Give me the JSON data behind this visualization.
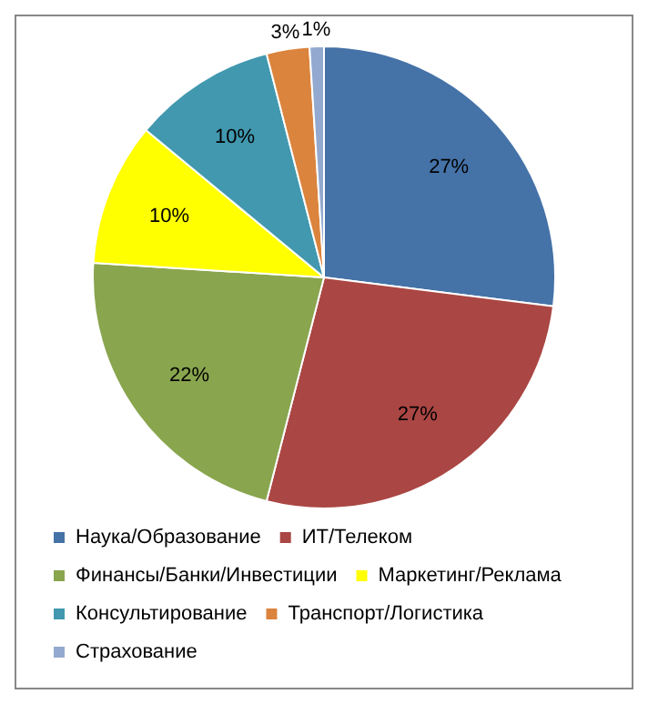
{
  "chart_data": {
    "type": "pie",
    "categories": [
      "Наука/Образование",
      "ИТ/Телеком",
      "Финансы/Банки/Инвестиции",
      "Маркетинг/Реклама",
      "Консультирование",
      "Транспорт/Логистика",
      "Страхование"
    ],
    "values": [
      27,
      27,
      22,
      10,
      10,
      3,
      1
    ],
    "colors": [
      "#4572a7",
      "#aa4643",
      "#89a54e",
      "#ffff00",
      "#4198af",
      "#db843d",
      "#93a9cf"
    ],
    "value_labels": [
      "27%",
      "27%",
      "22%",
      "10%",
      "10%",
      "3%",
      "1%"
    ],
    "legend": "bottom"
  }
}
